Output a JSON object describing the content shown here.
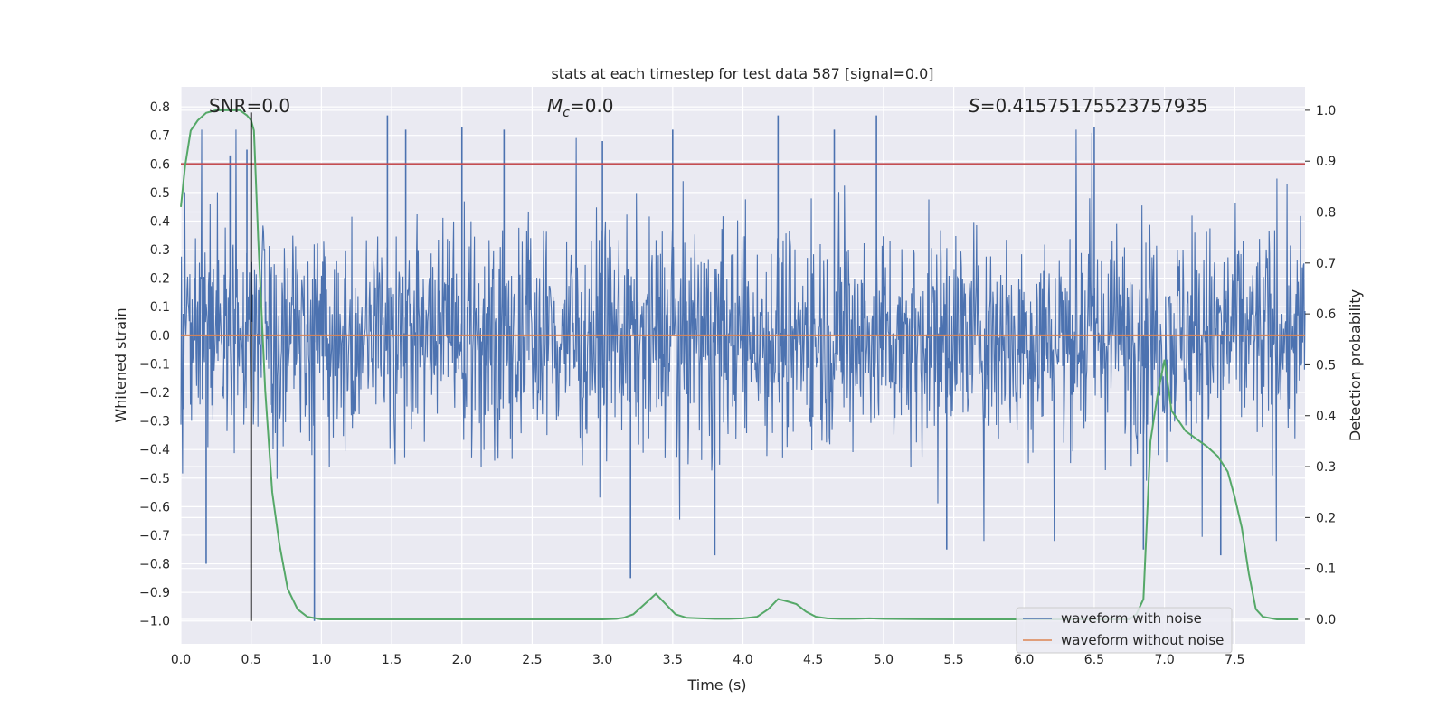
{
  "chart_data": {
    "type": "line",
    "title": "stats at each timestep for test data 587 [signal=0.0]",
    "xlabel": "Time (s)",
    "ylabel": "Whitened strain",
    "y2label": "Detection probability",
    "xlim": [
      0.0,
      8.0
    ],
    "ylim": [
      -1.08,
      0.87
    ],
    "y2lim": [
      -0.048,
      1.046
    ],
    "x_ticks": [
      "0.0",
      "0.5",
      "1.0",
      "1.5",
      "2.0",
      "2.5",
      "3.0",
      "3.5",
      "4.0",
      "4.5",
      "5.0",
      "5.5",
      "6.0",
      "6.5",
      "7.0",
      "7.5"
    ],
    "y_ticks": [
      "0.8",
      "0.7",
      "0.6",
      "0.5",
      "0.4",
      "0.3",
      "0.2",
      "0.1",
      "0.0",
      "-0.1",
      "-0.2",
      "-0.3",
      "-0.4",
      "-0.5",
      "-0.6",
      "-0.7",
      "-0.8",
      "-0.9",
      "-1.0"
    ],
    "y2_ticks": [
      "1.0",
      "0.9",
      "0.8",
      "0.7",
      "0.6",
      "0.5",
      "0.4",
      "0.3",
      "0.2",
      "0.1",
      "0.0"
    ],
    "grid": true,
    "legend_position": "lower-right",
    "annotations": {
      "snr_prefix": "SNR=",
      "snr_value": "0.0",
      "mc_symbol": "M",
      "mc_subscript": "c",
      "mc_value": "=0.0",
      "s_symbol": "S",
      "s_value": "=0.41575175523757935"
    },
    "series": [
      {
        "name": "waveform with noise",
        "color": "#4c72b0",
        "description_stat": "noise",
        "envelope_peaks": [
          [
            0.18,
            -0.8
          ],
          [
            0.35,
            0.63
          ],
          [
            0.47,
            0.65
          ],
          [
            0.95,
            -1.0
          ],
          [
            1.47,
            0.77
          ],
          [
            1.6,
            0.72
          ],
          [
            2.0,
            0.73
          ],
          [
            2.3,
            0.72
          ],
          [
            3.0,
            0.68
          ],
          [
            3.2,
            -0.85
          ],
          [
            3.5,
            0.72
          ],
          [
            3.8,
            -0.77
          ],
          [
            4.25,
            0.77
          ],
          [
            4.65,
            0.72
          ],
          [
            4.95,
            0.77
          ],
          [
            5.45,
            -0.75
          ],
          [
            6.5,
            0.73
          ],
          [
            6.85,
            -0.75
          ],
          [
            7.4,
            -0.77
          ]
        ]
      },
      {
        "name": "waveform without noise",
        "color": "#dd8452",
        "x": [
          0.0,
          8.0
        ],
        "y": [
          0.0,
          0.0
        ]
      },
      {
        "color": "#55a868",
        "axis": "right",
        "x": [
          0.0,
          0.03,
          0.07,
          0.12,
          0.18,
          0.25,
          0.33,
          0.42,
          0.47,
          0.5,
          0.52,
          0.55,
          0.6,
          0.65,
          0.7,
          0.76,
          0.83,
          0.9,
          1.0,
          1.5,
          2.0,
          2.5,
          3.0,
          3.1,
          3.15,
          3.22,
          3.3,
          3.38,
          3.45,
          3.52,
          3.6,
          3.7,
          3.8,
          3.9,
          4.0,
          4.1,
          4.18,
          4.25,
          4.32,
          4.38,
          4.45,
          4.52,
          4.6,
          4.7,
          4.8,
          4.9,
          5.0,
          5.5,
          6.0,
          6.5,
          6.75,
          6.8,
          6.85,
          6.9,
          6.95,
          7.0,
          7.05,
          7.1,
          7.15,
          7.2,
          7.25,
          7.3,
          7.38,
          7.45,
          7.5,
          7.55,
          7.6,
          7.65,
          7.7,
          7.8,
          7.95
        ],
        "y": [
          0.81,
          0.89,
          0.96,
          0.98,
          0.995,
          1.0,
          1.0,
          1.0,
          0.99,
          0.98,
          0.96,
          0.75,
          0.45,
          0.25,
          0.15,
          0.06,
          0.02,
          0.005,
          0.0,
          0.0,
          0.0,
          0.0,
          0.0,
          0.001,
          0.003,
          0.01,
          0.03,
          0.05,
          0.03,
          0.01,
          0.003,
          0.002,
          0.001,
          0.001,
          0.002,
          0.005,
          0.02,
          0.04,
          0.035,
          0.03,
          0.015,
          0.005,
          0.002,
          0.001,
          0.001,
          0.002,
          0.001,
          0.0,
          0.0,
          0.0,
          0.0,
          0.01,
          0.04,
          0.35,
          0.44,
          0.51,
          0.41,
          0.39,
          0.37,
          0.36,
          0.35,
          0.34,
          0.32,
          0.29,
          0.24,
          0.18,
          0.09,
          0.02,
          0.005,
          0.0,
          0.0
        ]
      },
      {
        "color": "#c44e52",
        "axis": "left",
        "x": [
          0.0,
          8.0
        ],
        "y": [
          0.6,
          0.6
        ]
      },
      {
        "color": "#000000",
        "axis": "left",
        "kind": "vertical-marker",
        "x": [
          0.5,
          0.5
        ],
        "y": [
          -1.0,
          0.78
        ]
      }
    ]
  }
}
